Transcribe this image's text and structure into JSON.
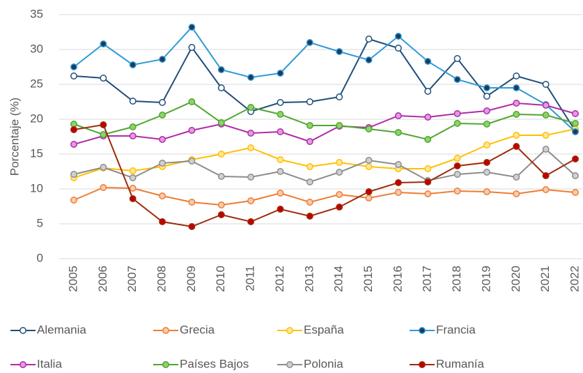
{
  "chart_data": {
    "type": "line",
    "y_label": "Porcentaje (%)",
    "categories": [
      "2005",
      "2006",
      "2007",
      "2008",
      "2009",
      "2010",
      "2011",
      "2012",
      "2013",
      "2014",
      "2015",
      "2016",
      "2017",
      "2018",
      "2019",
      "2020",
      "2021",
      "2022"
    ],
    "ylim": [
      0,
      35
    ],
    "yticks": [
      0,
      5,
      10,
      15,
      20,
      25,
      30,
      35
    ],
    "grid": true,
    "series": [
      {
        "name": "Alemania",
        "color": "#1f4e79",
        "marker_fill": "#ffffff",
        "values": [
          26.2,
          25.9,
          22.6,
          22.4,
          30.3,
          24.5,
          21.1,
          22.4,
          22.5,
          23.2,
          31.5,
          30.2,
          24.0,
          28.7,
          23.3,
          26.2,
          25.0,
          18.3
        ]
      },
      {
        "name": "Grecia",
        "color": "#ed7d31",
        "marker_fill": "#f8cbad",
        "values": [
          8.4,
          10.2,
          10.1,
          9.0,
          8.1,
          7.7,
          8.3,
          9.4,
          8.1,
          9.2,
          8.7,
          9.5,
          9.3,
          9.7,
          9.6,
          9.3,
          9.9,
          9.5
        ]
      },
      {
        "name": "España",
        "color": "#ffc000",
        "marker_fill": "#ffe699",
        "values": [
          11.6,
          13.0,
          12.6,
          13.2,
          14.2,
          15.0,
          15.9,
          14.2,
          13.2,
          13.8,
          13.2,
          12.9,
          12.9,
          14.4,
          16.3,
          17.7,
          17.7,
          18.6
        ]
      },
      {
        "name": "Francia",
        "color": "#2e9bd6",
        "marker_fill": "#1f3b5c",
        "values": [
          27.5,
          30.8,
          27.8,
          28.6,
          33.2,
          27.1,
          26.0,
          26.6,
          31.0,
          29.7,
          28.5,
          31.9,
          28.3,
          25.7,
          24.5,
          24.5,
          22.1,
          18.2
        ]
      },
      {
        "name": "Italia",
        "color": "#b02aa8",
        "marker_fill": "#e39be0",
        "values": [
          16.4,
          17.6,
          17.6,
          17.1,
          18.4,
          19.3,
          18.0,
          18.2,
          16.8,
          19.0,
          18.8,
          20.5,
          20.3,
          20.8,
          21.2,
          22.3,
          22.0,
          20.8
        ]
      },
      {
        "name": "Países Bajos",
        "color": "#4ea72e",
        "marker_fill": "#8fd16f",
        "values": [
          19.3,
          17.8,
          18.9,
          20.6,
          22.5,
          19.5,
          21.7,
          20.7,
          19.1,
          19.1,
          18.6,
          18.1,
          17.1,
          19.4,
          19.3,
          20.7,
          20.6,
          19.4
        ]
      },
      {
        "name": "Polonia",
        "color": "#8c8c8c",
        "marker_fill": "#d0d0d0",
        "values": [
          12.1,
          13.1,
          11.6,
          13.7,
          14.0,
          11.8,
          11.7,
          12.5,
          11.0,
          12.4,
          14.1,
          13.5,
          11.2,
          12.1,
          12.4,
          11.7,
          15.7,
          11.9
        ]
      },
      {
        "name": "Rumanía",
        "color": "#9e2a0b",
        "marker_fill": "#c00000",
        "values": [
          18.5,
          19.2,
          8.6,
          5.3,
          4.6,
          6.3,
          5.3,
          7.1,
          6.1,
          7.4,
          9.6,
          10.9,
          11.0,
          13.3,
          13.8,
          16.1,
          11.9,
          14.3
        ]
      }
    ]
  }
}
